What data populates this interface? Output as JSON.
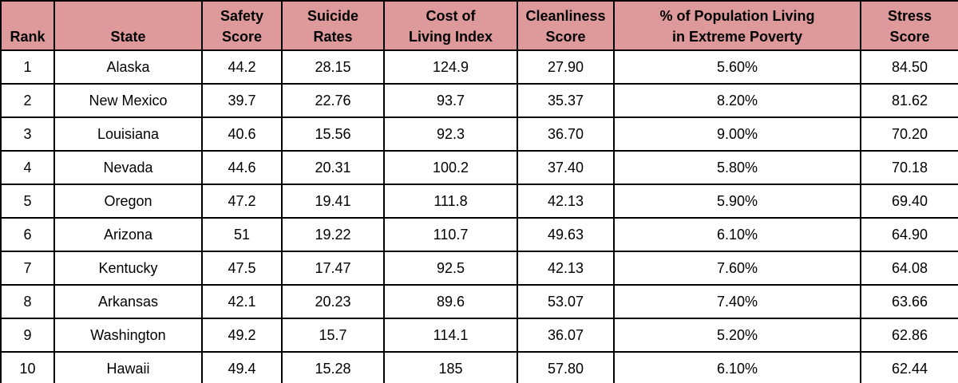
{
  "chart_data": {
    "type": "table",
    "title": "",
    "columns": [
      {
        "key": "rank",
        "lines": [
          "Rank"
        ]
      },
      {
        "key": "state",
        "lines": [
          "State"
        ]
      },
      {
        "key": "safety-score",
        "lines": [
          "Safety",
          "Score"
        ]
      },
      {
        "key": "suicide-rates",
        "lines": [
          "Suicide",
          "Rates"
        ]
      },
      {
        "key": "cost-of-living-index",
        "lines": [
          "Cost of",
          "Living Index"
        ]
      },
      {
        "key": "cleanliness-score",
        "lines": [
          "Cleanliness",
          "Score"
        ]
      },
      {
        "key": "pct-extreme-poverty",
        "lines": [
          "% of Population Living",
          "in Extreme Poverty"
        ]
      },
      {
        "key": "stress-score",
        "lines": [
          "Stress",
          "Score"
        ]
      }
    ],
    "rows": [
      [
        "1",
        "Alaska",
        "44.2",
        "28.15",
        "124.9",
        "27.90",
        "5.60%",
        "84.50"
      ],
      [
        "2",
        "New Mexico",
        "39.7",
        "22.76",
        "93.7",
        "35.37",
        "8.20%",
        "81.62"
      ],
      [
        "3",
        "Louisiana",
        "40.6",
        "15.56",
        "92.3",
        "36.70",
        "9.00%",
        "70.20"
      ],
      [
        "4",
        "Nevada",
        "44.6",
        "20.31",
        "100.2",
        "37.40",
        "5.80%",
        "70.18"
      ],
      [
        "5",
        "Oregon",
        "47.2",
        "19.41",
        "111.8",
        "42.13",
        "5.90%",
        "69.40"
      ],
      [
        "6",
        "Arizona",
        "51",
        "19.22",
        "110.7",
        "49.63",
        "6.10%",
        "64.90"
      ],
      [
        "7",
        "Kentucky",
        "47.5",
        "17.47",
        "92.5",
        "42.13",
        "7.60%",
        "64.08"
      ],
      [
        "8",
        "Arkansas",
        "42.1",
        "20.23",
        "89.6",
        "53.07",
        "7.40%",
        "63.66"
      ],
      [
        "9",
        "Washington",
        "49.2",
        "15.7",
        "114.1",
        "36.07",
        "5.20%",
        "62.86"
      ],
      [
        "10",
        "Hawaii",
        "49.4",
        "15.28",
        "185",
        "57.80",
        "6.10%",
        "62.44"
      ]
    ],
    "layout": {
      "header_bg": "#de9a9a",
      "border_color": "#000000",
      "text_color": "#000000",
      "grid": true,
      "legend_position": "none"
    }
  }
}
